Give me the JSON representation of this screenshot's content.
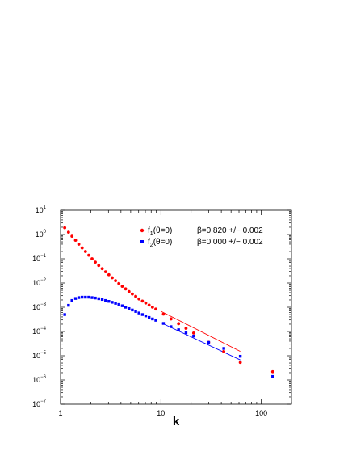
{
  "chart_data": {
    "type": "scatter",
    "xlabel": "k",
    "ylabel": "",
    "xscale": "log",
    "yscale": "log",
    "xlim": [
      1,
      200
    ],
    "ylim": [
      1e-07,
      10
    ],
    "x_ticks": [
      {
        "value": 1,
        "label": "1"
      },
      {
        "value": 10,
        "label": "10"
      },
      {
        "value": 100,
        "label": "100"
      }
    ],
    "y_ticks": [
      {
        "value": 10.0,
        "base": "10",
        "exp": "1"
      },
      {
        "value": 1.0,
        "base": "10",
        "exp": "0"
      },
      {
        "value": 0.1,
        "base": "10",
        "exp": "−1"
      },
      {
        "value": 0.01,
        "base": "10",
        "exp": "−2"
      },
      {
        "value": 0.001,
        "base": "10",
        "exp": "−3"
      },
      {
        "value": 0.0001,
        "base": "10",
        "exp": "−4"
      },
      {
        "value": 1e-05,
        "base": "10",
        "exp": "−5"
      },
      {
        "value": 1e-06,
        "base": "10",
        "exp": "−6"
      },
      {
        "value": 1e-07,
        "base": "10",
        "exp": "−7"
      }
    ],
    "legend_position": "top-center",
    "series": [
      {
        "name": "f1(θ=0)",
        "label_main": "f",
        "label_sub": "1",
        "label_rest": "(θ=0)",
        "fit_text": "β=0.820 +/− 0.002",
        "color": "#ff0000",
        "marker": "circle",
        "x": [
          1.1,
          1.2,
          1.3,
          1.41,
          1.52,
          1.64,
          1.77,
          1.91,
          2.06,
          2.22,
          2.4,
          2.6,
          2.81,
          3.03,
          3.27,
          3.53,
          3.81,
          4.12,
          4.45,
          4.81,
          5.19,
          5.61,
          6.05,
          6.54,
          7.06,
          7.63,
          8.24,
          8.9,
          10.6,
          12.6,
          15.0,
          17.8,
          21.2,
          29.9,
          42.3,
          61.8,
          130
        ],
        "y": [
          1.9,
          1.25,
          0.85,
          0.58,
          0.4,
          0.28,
          0.2,
          0.14,
          0.1,
          0.073,
          0.053,
          0.039,
          0.029,
          0.022,
          0.0165,
          0.0125,
          0.0095,
          0.0073,
          0.0057,
          0.0044,
          0.0035,
          0.0028,
          0.0022,
          0.0018,
          0.0015,
          0.00122,
          0.00101,
          0.00084,
          0.00052,
          0.00033,
          0.00021,
          0.000135,
          8.66e-05,
          3.57e-05,
          1.5e-05,
          5.3e-06,
          2.2e-06
        ],
        "fit": {
          "x": [
            10,
            61.8
          ],
          "y": [
            0.00068,
            1.51e-05
          ]
        }
      },
      {
        "name": "f2(θ=0)",
        "label_main": "f",
        "label_sub": "2",
        "label_rest": "(θ=0)",
        "fit_text": "β=0.000 +/− 0.002",
        "color": "#0000ff",
        "marker": "square",
        "x": [
          1.1,
          1.2,
          1.3,
          1.41,
          1.52,
          1.64,
          1.77,
          1.91,
          2.06,
          2.22,
          2.4,
          2.6,
          2.81,
          3.03,
          3.27,
          3.53,
          3.81,
          4.12,
          4.45,
          4.81,
          5.19,
          5.61,
          6.05,
          6.54,
          7.06,
          7.63,
          8.24,
          8.9,
          10.6,
          12.6,
          15.0,
          17.8,
          21.2,
          29.9,
          42.3,
          61.8,
          130
        ],
        "y": [
          0.0005,
          0.0012,
          0.0019,
          0.0023,
          0.0025,
          0.0026,
          0.0026,
          0.0026,
          0.0025,
          0.0024,
          0.00225,
          0.0021,
          0.0019,
          0.00175,
          0.0016,
          0.00145,
          0.0013,
          0.00115,
          0.001,
          0.00088,
          0.00077,
          0.00067,
          0.00058,
          0.0005,
          0.00044,
          0.00038,
          0.00033,
          0.00029,
          0.000215,
          0.000158,
          0.000118,
          8.75e-05,
          6.5e-05,
          3.55e-05,
          2e-05,
          9.5e-06,
          1.4e-06
        ],
        "fit": {
          "x": [
            10,
            61.8
          ],
          "y": [
            0.00023,
            6.7e-06
          ]
        }
      }
    ]
  }
}
